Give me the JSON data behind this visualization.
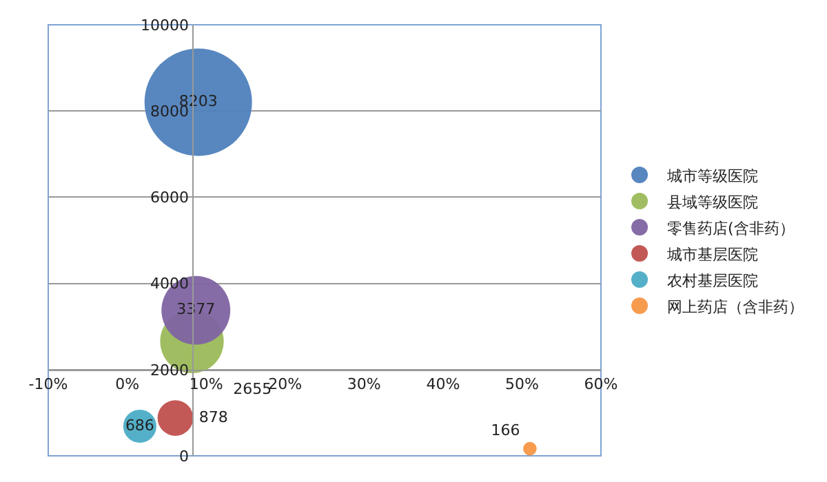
{
  "chart_data": {
    "type": "bubble",
    "xlim": [
      -10,
      60
    ],
    "xticks": [
      {
        "value": -10,
        "label": "-10%"
      },
      {
        "value": 0,
        "label": "0%"
      },
      {
        "value": 10,
        "label": "10%"
      },
      {
        "value": 20,
        "label": "20%"
      },
      {
        "value": 30,
        "label": "30%"
      },
      {
        "value": 40,
        "label": "40%"
      },
      {
        "value": 50,
        "label": "50%"
      },
      {
        "value": 60,
        "label": "60%"
      }
    ],
    "ylim": [
      0,
      10000
    ],
    "yticks": [
      0,
      2000,
      4000,
      6000,
      8000,
      10000
    ],
    "grid": "y",
    "legend": "right",
    "data_labels": true,
    "series": [
      {
        "name": "城市等级医院",
        "color": "#4f81bd",
        "x": [
          9.0
        ],
        "values": [
          8203
        ],
        "sizes": [
          1
        ]
      },
      {
        "name": "县域等级医院",
        "color": "#9bbb59",
        "x": [
          8.2
        ],
        "values": [
          2655
        ],
        "sizes": [
          0.35
        ]
      },
      {
        "name": "零售药店(含非药）",
        "color": "#8064a2",
        "x": [
          8.7
        ],
        "values": [
          3377
        ],
        "sizes": [
          0.41
        ]
      },
      {
        "name": "城市基层医院",
        "color": "#c0504d",
        "x": [
          6.1
        ],
        "values": [
          878
        ],
        "sizes": [
          0.11
        ]
      },
      {
        "name": "农村基层医院",
        "color": "#4bacc6",
        "x": [
          1.6
        ],
        "values": [
          686
        ],
        "sizes": [
          0.095
        ]
      },
      {
        "name": "网上药店（含非药）",
        "color": "#f79646",
        "x": [
          51
        ],
        "values": [
          166
        ],
        "sizes": [
          0.016
        ]
      }
    ]
  }
}
